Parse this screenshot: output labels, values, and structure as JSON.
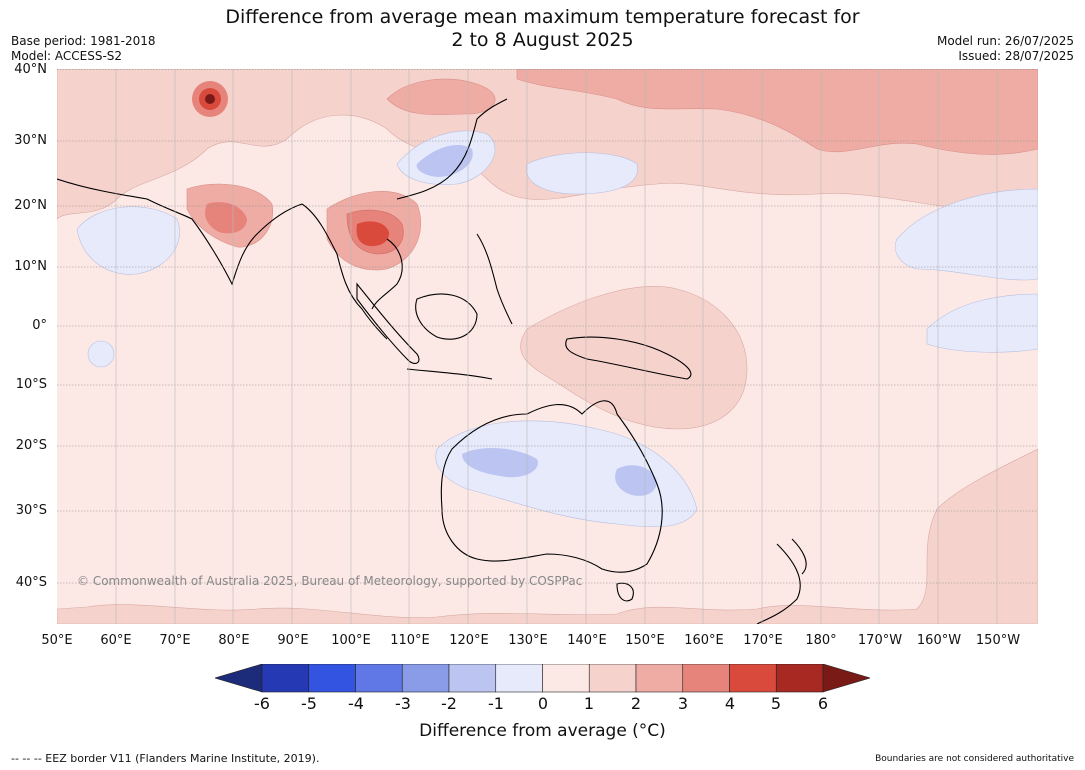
{
  "title_line1": "Difference from average mean maximum temperature forecast for",
  "title_line2": "2 to 8 August 2025",
  "meta_left": [
    "Base period: 1981-2018",
    "Model: ACCESS-S2"
  ],
  "meta_right": [
    "Model run: 26/07/2025",
    "Issued: 28/07/2025"
  ],
  "lat_labels": [
    "40°N",
    "30°N",
    "20°N",
    "10°N",
    "0°",
    "10°S",
    "20°S",
    "30°S",
    "40°S"
  ],
  "lon_labels": [
    "50°E",
    "60°E",
    "70°E",
    "80°E",
    "90°E",
    "100°E",
    "110°E",
    "120°E",
    "130°E",
    "140°E",
    "150°E",
    "160°E",
    "170°E",
    "180°",
    "170°W",
    "160°W",
    "150°W"
  ],
  "copyright": "© Commonwealth of Australia 2025, Bureau of Meteorology, supported by COSPPac",
  "colorbar": {
    "ticks": [
      "-6",
      "-5",
      "-4",
      "-3",
      "-2",
      "-1",
      "0",
      "1",
      "2",
      "3",
      "4",
      "5",
      "6"
    ],
    "colors": [
      "#1c2b7a",
      "#2639b4",
      "#3354e0",
      "#5f78e6",
      "#8a9ce8",
      "#bcc5f2",
      "#e6eafb",
      "#fce9e6",
      "#f6d2cd",
      "#eeaca5",
      "#e6847c",
      "#da4a3c",
      "#a82822",
      "#7a1a17"
    ],
    "label": "Difference from average (°C)"
  },
  "footer_left": "-- -- -- EEZ border V11 (Flanders Marine Institute, 2019).",
  "footer_right": "Boundaries are not considered authoritative",
  "map": {
    "base_color": "#fce9e6",
    "anomaly_regions": [
      {
        "name": "warm-northern-pacific",
        "value": 2
      },
      {
        "name": "warm-indochina",
        "value": 4
      },
      {
        "name": "warm-kashmir",
        "value": 5
      },
      {
        "name": "cool-australia",
        "value": -1
      },
      {
        "name": "cool-china",
        "value": -1
      },
      {
        "name": "cool-pacific-east",
        "value": -1
      }
    ]
  }
}
